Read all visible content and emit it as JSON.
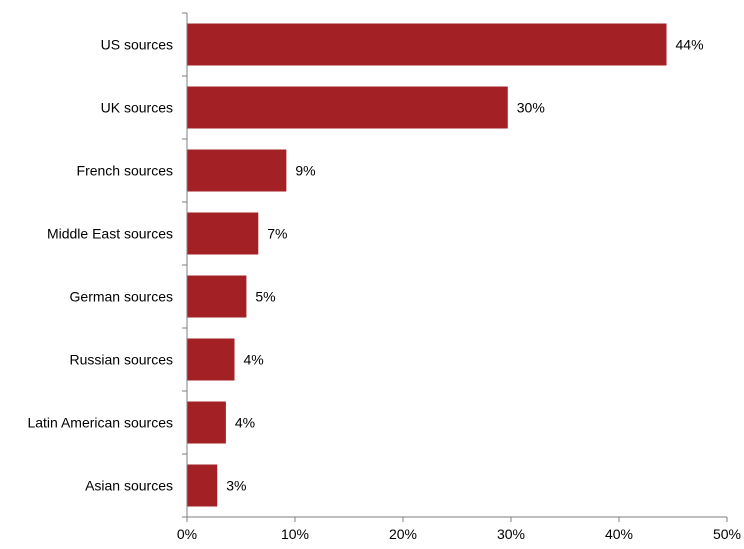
{
  "chart_data": {
    "type": "bar",
    "orientation": "horizontal",
    "title": "",
    "xlabel": "",
    "ylabel": "",
    "categories": [
      "US sources",
      "UK sources",
      "French sources",
      "Middle East sources",
      "German sources",
      "Russian sources",
      "Latin American sources",
      "Asian sources"
    ],
    "values": [
      44.4,
      29.7,
      9.2,
      6.6,
      5.5,
      4.4,
      3.6,
      2.8
    ],
    "data_labels": [
      "44%",
      "30%",
      "9%",
      "7%",
      "5%",
      "4%",
      "4%",
      "3%"
    ],
    "xlim": [
      0,
      50
    ],
    "x_ticks": [
      0,
      10,
      20,
      30,
      40,
      50
    ],
    "x_tick_labels": [
      "0%",
      "10%",
      "20%",
      "30%",
      "40%",
      "50%"
    ],
    "grid": false,
    "legend": "none",
    "bar_color": "#a32024",
    "axis_color": "#7f7f7f"
  }
}
